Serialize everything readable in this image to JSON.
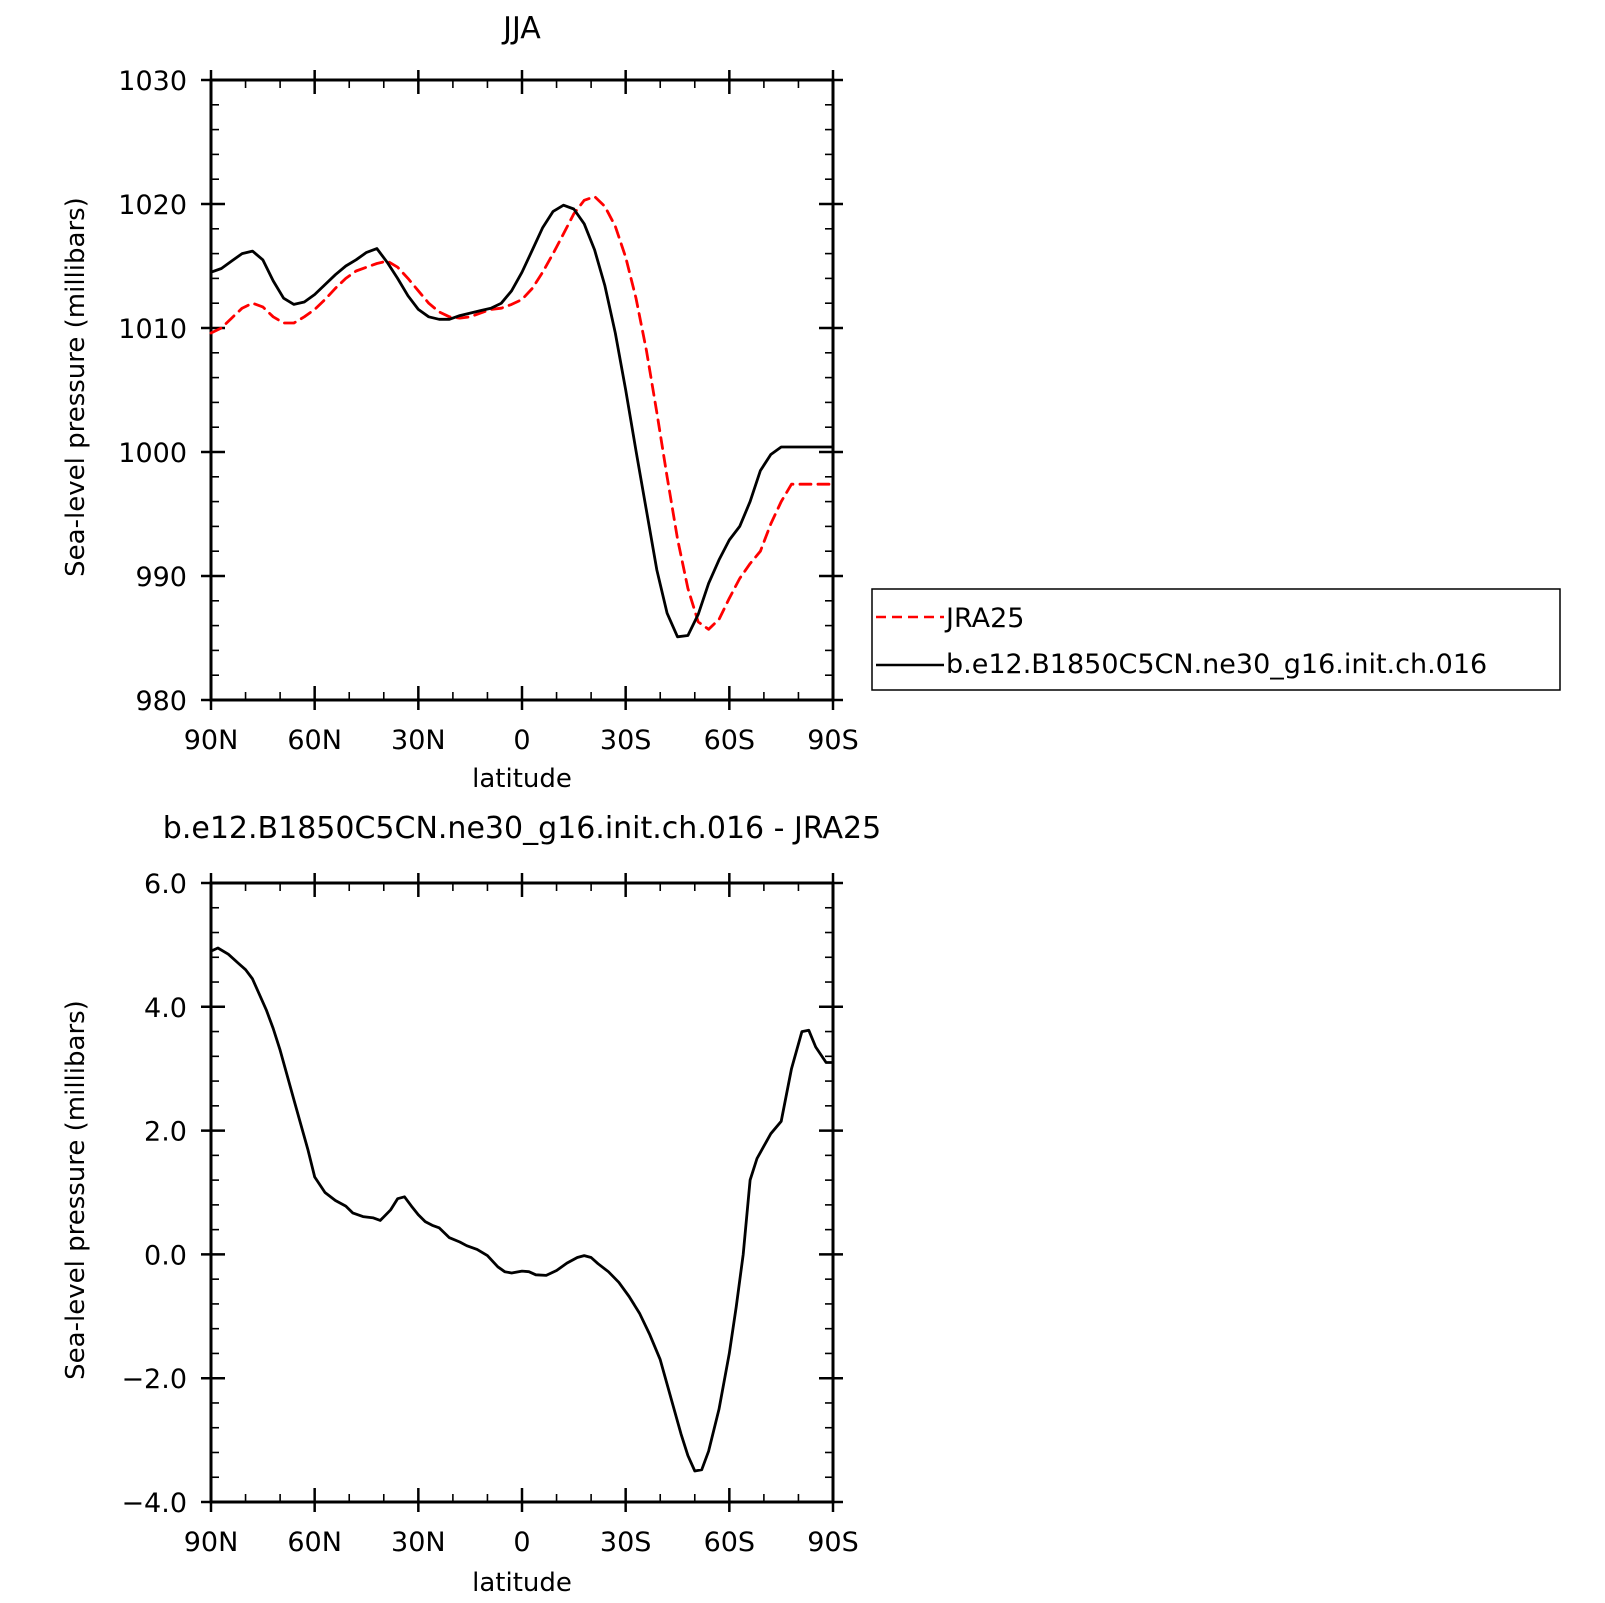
{
  "chart_data": [
    {
      "id": "panel-1",
      "type": "line",
      "title": "JJA",
      "xlabel": "latitude",
      "ylabel": "Sea-level pressure (millibars)",
      "xlim": [
        -90,
        90
      ],
      "ylim": [
        980,
        1030
      ],
      "x_ticks": [
        -90,
        -60,
        -30,
        0,
        30,
        60,
        90
      ],
      "x_tick_labels": [
        "90N",
        "60N",
        "30N",
        "0",
        "30S",
        "60S",
        "90S"
      ],
      "y_ticks": [
        980,
        990,
        1000,
        1010,
        1020,
        1030
      ],
      "y_tick_labels": [
        "980",
        "990",
        "1000",
        "1010",
        "1020",
        "1030"
      ],
      "y_minor_step": 2,
      "x_minor_step": 10,
      "grid": false,
      "legend_position": "outside-right",
      "series": [
        {
          "name": "JRA25",
          "color": "#ff0000",
          "dash": "dashed",
          "x": [
            -90,
            -87,
            -84,
            -81,
            -78,
            -75,
            -72,
            -69,
            -66,
            -63,
            -60,
            -57,
            -54,
            -51,
            -48,
            -45,
            -42,
            -39,
            -36,
            -33,
            -30,
            -27,
            -24,
            -21,
            -18,
            -15,
            -12,
            -9,
            -6,
            -3,
            0,
            3,
            6,
            9,
            12,
            15,
            18,
            21,
            24,
            27,
            30,
            33,
            36,
            39,
            42,
            45,
            48,
            51,
            54,
            57,
            60,
            63,
            66,
            69,
            72,
            75,
            78,
            81,
            84,
            87,
            90
          ],
          "y": [
            1009.6,
            1010.0,
            1010.8,
            1011.6,
            1012.0,
            1011.7,
            1010.9,
            1010.4,
            1010.4,
            1010.9,
            1011.5,
            1012.3,
            1013.2,
            1014.0,
            1014.6,
            1014.9,
            1015.2,
            1015.4,
            1014.9,
            1014.0,
            1013.0,
            1012.0,
            1011.3,
            1010.9,
            1010.8,
            1010.9,
            1011.2,
            1011.5,
            1011.6,
            1011.9,
            1012.3,
            1013.2,
            1014.5,
            1016.0,
            1017.6,
            1019.2,
            1020.3,
            1020.6,
            1019.8,
            1018.2,
            1015.7,
            1012.4,
            1008.2,
            1003.2,
            998.0,
            993.0,
            989.0,
            986.3,
            985.7,
            986.5,
            988.2,
            989.8,
            991.0,
            992.0,
            994.2,
            996.0,
            997.4,
            997.4,
            997.4,
            997.4,
            997.4
          ]
        },
        {
          "name": "b.e12.B1850C5CN.ne30_g16.init.ch.016",
          "color": "#000000",
          "dash": "solid",
          "x": [
            -90,
            -87,
            -84,
            -81,
            -78,
            -75,
            -72,
            -69,
            -66,
            -63,
            -60,
            -57,
            -54,
            -51,
            -48,
            -45,
            -42,
            -39,
            -36,
            -33,
            -30,
            -27,
            -24,
            -21,
            -18,
            -15,
            -12,
            -9,
            -6,
            -3,
            0,
            3,
            6,
            9,
            12,
            15,
            18,
            21,
            24,
            27,
            30,
            33,
            36,
            39,
            42,
            45,
            48,
            51,
            54,
            57,
            60,
            63,
            66,
            69,
            72,
            75,
            78,
            81,
            84,
            87,
            90
          ],
          "y": [
            1014.5,
            1014.8,
            1015.4,
            1016.0,
            1016.2,
            1015.5,
            1013.8,
            1012.4,
            1011.9,
            1012.1,
            1012.7,
            1013.5,
            1014.3,
            1015.0,
            1015.5,
            1016.1,
            1016.4,
            1015.3,
            1014.0,
            1012.6,
            1011.5,
            1010.9,
            1010.7,
            1010.7,
            1011.0,
            1011.2,
            1011.4,
            1011.6,
            1012.0,
            1013.0,
            1014.5,
            1016.3,
            1018.1,
            1019.4,
            1019.9,
            1019.6,
            1018.4,
            1016.3,
            1013.4,
            1009.6,
            1005.0,
            1000.1,
            995.3,
            990.5,
            987.0,
            985.1,
            985.2,
            986.9,
            989.4,
            991.3,
            992.9,
            994.0,
            996.0,
            998.5,
            999.8,
            1000.4,
            1000.4,
            1000.4,
            1000.4,
            1000.4,
            1000.4
          ]
        }
      ]
    },
    {
      "id": "panel-2",
      "type": "line",
      "title": "b.e12.B1850C5CN.ne30_g16.init.ch.016 - JRA25",
      "xlabel": "latitude",
      "ylabel": "Sea-level pressure (millibars)",
      "xlim": [
        -90,
        90
      ],
      "ylim": [
        -4,
        6
      ],
      "x_ticks": [
        -90,
        -60,
        -30,
        0,
        30,
        60,
        90
      ],
      "x_tick_labels": [
        "90N",
        "60N",
        "30N",
        "0",
        "30S",
        "60S",
        "90S"
      ],
      "y_ticks": [
        -4,
        -2,
        0,
        2,
        4,
        6
      ],
      "y_tick_labels": [
        "−4.0",
        "−2.0",
        "0.0",
        "2.0",
        "4.0",
        "6.0"
      ],
      "y_minor_step": 0.4,
      "x_minor_step": 10,
      "grid": false,
      "series": [
        {
          "name": "",
          "color": "#000000",
          "dash": "solid",
          "x": [
            -90,
            -88,
            -85,
            -82,
            -80,
            -78,
            -76,
            -74,
            -72,
            -70,
            -68,
            -66,
            -64,
            -62,
            -60,
            -57,
            -54,
            -51,
            -49,
            -46,
            -43,
            -41,
            -38,
            -36,
            -34,
            -32,
            -30,
            -28,
            -26,
            -24,
            -21,
            -18,
            -16,
            -13,
            -10,
            -7,
            -5,
            -3,
            0,
            2,
            4,
            7,
            10,
            13,
            16,
            18,
            20,
            22,
            25,
            28,
            31,
            34,
            37,
            40,
            43,
            46,
            48,
            50,
            52,
            54,
            57,
            60,
            62,
            64,
            66,
            68,
            70,
            72,
            75,
            78,
            81,
            83,
            85,
            88,
            90
          ],
          "y": [
            4.9,
            4.95,
            4.85,
            4.7,
            4.6,
            4.45,
            4.2,
            3.95,
            3.65,
            3.3,
            2.9,
            2.5,
            2.1,
            1.7,
            1.25,
            1.0,
            0.87,
            0.78,
            0.67,
            0.61,
            0.59,
            0.55,
            0.72,
            0.9,
            0.93,
            0.78,
            0.64,
            0.53,
            0.47,
            0.43,
            0.27,
            0.2,
            0.14,
            0.08,
            -0.02,
            -0.2,
            -0.28,
            -0.3,
            -0.27,
            -0.28,
            -0.33,
            -0.34,
            -0.26,
            -0.14,
            -0.05,
            -0.02,
            -0.05,
            -0.15,
            -0.28,
            -0.45,
            -0.68,
            -0.95,
            -1.3,
            -1.7,
            -2.3,
            -2.9,
            -3.25,
            -3.5,
            -3.48,
            -3.18,
            -2.5,
            -1.6,
            -0.85,
            0.0,
            1.2,
            1.55,
            1.75,
            1.95,
            2.15,
            3.0,
            3.6,
            3.62,
            3.35,
            3.1,
            3.1
          ]
        }
      ]
    }
  ]
}
